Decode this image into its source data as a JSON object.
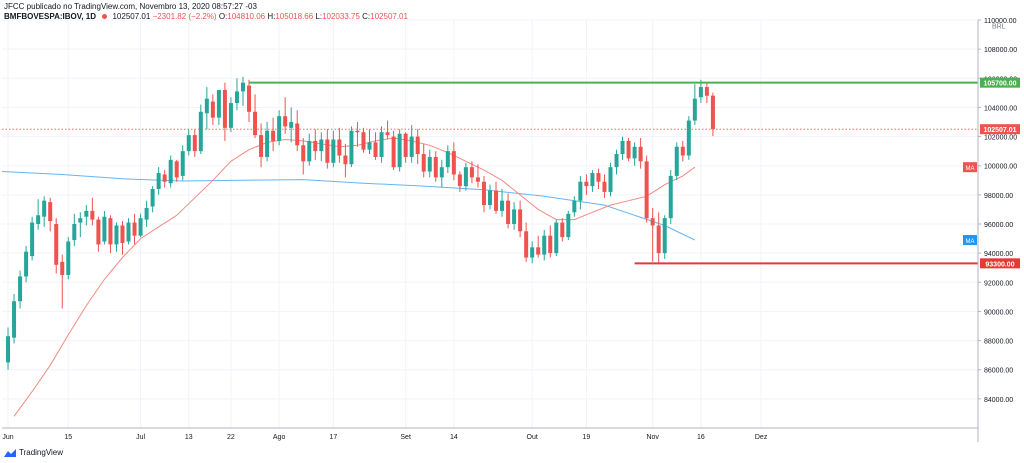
{
  "header": {
    "line1": "JFCC publicado no TradingView.com, Novembro 13, 2020 08:57:27 -03",
    "symbol": "BMFBOVESPA:IBOV, 1D",
    "price": "102507.01",
    "change": "−2301.82 (−2.2%)",
    "o_label": "O:",
    "o_val": "104810.06",
    "h_label": "H:",
    "h_val": "105018.66",
    "l_label": "L:",
    "l_val": "102033.75",
    "c_label": "C:",
    "c_val": "102507.01"
  },
  "footer": {
    "brand": "TradingView"
  },
  "colors": {
    "up": "#26a69a",
    "down": "#ef5350",
    "ma_fast": "#f28b82",
    "ma_slow": "#64b5f6",
    "resistance": "#4caf50",
    "support": "#e53935"
  },
  "chart_data": {
    "type": "candlestick",
    "currency_label": "BRL",
    "y_range": [
      82000,
      110000
    ],
    "y_ticks": [
      "84000.00",
      "86000.00",
      "88000.00",
      "90000.00",
      "92000.00",
      "94000.00",
      "96000.00",
      "98000.00",
      "100000.00",
      "102000.00",
      "104000.00",
      "106000.00",
      "108000.00",
      "110000.00"
    ],
    "x_range": [
      0,
      162
    ],
    "x_ticks": [
      {
        "label": "Jun",
        "x": 1
      },
      {
        "label": "15",
        "x": 11
      },
      {
        "label": "Jul",
        "x": 23
      },
      {
        "label": "13",
        "x": 31
      },
      {
        "label": "22",
        "x": 38
      },
      {
        "label": "Ago",
        "x": 46
      },
      {
        "label": "17",
        "x": 55
      },
      {
        "label": "Set",
        "x": 67
      },
      {
        "label": "14",
        "x": 75
      },
      {
        "label": "Out",
        "x": 88
      },
      {
        "label": "19",
        "x": 97
      },
      {
        "label": "Nov",
        "x": 108
      },
      {
        "label": "16",
        "x": 116
      },
      {
        "label": "Dez",
        "x": 126
      }
    ],
    "candles": [
      [
        86500,
        88900,
        86000,
        88300
      ],
      [
        88200,
        91200,
        87800,
        90700
      ],
      [
        90700,
        92800,
        90200,
        92400
      ],
      [
        92400,
        94500,
        92000,
        94100
      ],
      [
        93800,
        96500,
        93500,
        96100
      ],
      [
        96000,
        97700,
        95600,
        96600
      ],
      [
        96500,
        97900,
        95800,
        97600
      ],
      [
        97500,
        97800,
        95500,
        96200
      ],
      [
        96000,
        96400,
        92600,
        93200
      ],
      [
        93400,
        93900,
        90200,
        92500
      ],
      [
        92500,
        95100,
        92200,
        94800
      ],
      [
        94900,
        96700,
        94500,
        96000
      ],
      [
        96100,
        96800,
        95100,
        96400
      ],
      [
        96500,
        97300,
        95900,
        96900
      ],
      [
        96900,
        97800,
        95900,
        96300
      ],
      [
        96300,
        96500,
        94100,
        94600
      ],
      [
        94800,
        96900,
        94600,
        96500
      ],
      [
        96400,
        96600,
        94000,
        94600
      ],
      [
        94600,
        96100,
        94100,
        95900
      ],
      [
        95900,
        96200,
        93900,
        94700
      ],
      [
        94800,
        96400,
        94600,
        96100
      ],
      [
        96100,
        96700,
        94600,
        95200
      ],
      [
        95200,
        96700,
        95100,
        96400
      ],
      [
        96300,
        97600,
        95800,
        97100
      ],
      [
        97200,
        98600,
        96800,
        98400
      ],
      [
        98400,
        99900,
        98000,
        99500
      ],
      [
        99400,
        99700,
        98500,
        98900
      ],
      [
        98800,
        100700,
        98500,
        100400
      ],
      [
        100300,
        100400,
        98900,
        99200
      ],
      [
        99300,
        101400,
        99000,
        101000
      ],
      [
        101000,
        102500,
        100700,
        102100
      ],
      [
        102100,
        102500,
        100600,
        101000
      ],
      [
        101000,
        104200,
        100800,
        103700
      ],
      [
        103600,
        105400,
        102500,
        104600
      ],
      [
        104400,
        104900,
        102800,
        103300
      ],
      [
        103300,
        105200,
        102800,
        105200
      ],
      [
        105200,
        105700,
        101700,
        102600
      ],
      [
        102600,
        104700,
        102300,
        104300
      ],
      [
        104300,
        106000,
        103800,
        105100
      ],
      [
        105100,
        106100,
        104100,
        105700
      ],
      [
        105500,
        105900,
        103000,
        103700
      ],
      [
        103700,
        104900,
        101900,
        102100
      ],
      [
        102100,
        102900,
        99900,
        100600
      ],
      [
        100600,
        103000,
        100300,
        102400
      ],
      [
        102400,
        103300,
        101000,
        101700
      ],
      [
        101700,
        103800,
        101400,
        103400
      ],
      [
        103400,
        104700,
        102200,
        102700
      ],
      [
        102600,
        104000,
        101600,
        103000
      ],
      [
        102900,
        103800,
        101000,
        101400
      ],
      [
        101400,
        101900,
        99400,
        100300
      ],
      [
        100300,
        102200,
        100000,
        101700
      ],
      [
        101700,
        102500,
        100400,
        101000
      ],
      [
        101000,
        102300,
        100300,
        101800
      ],
      [
        101800,
        102500,
        99800,
        100200
      ],
      [
        100200,
        102400,
        99900,
        101800
      ],
      [
        101800,
        102600,
        100200,
        100700
      ],
      [
        100700,
        101500,
        99200,
        100100
      ],
      [
        100100,
        102700,
        99900,
        102400
      ],
      [
        102400,
        103000,
        101300,
        102300
      ],
      [
        102300,
        102600,
        100900,
        101100
      ],
      [
        101100,
        102500,
        100800,
        101600
      ],
      [
        101600,
        102300,
        100400,
        100600
      ],
      [
        100600,
        102700,
        100200,
        102300
      ],
      [
        102300,
        103100,
        101800,
        102100
      ],
      [
        102000,
        102400,
        99700,
        99900
      ],
      [
        99900,
        102500,
        99600,
        102200
      ],
      [
        102200,
        102300,
        100200,
        100600
      ],
      [
        100600,
        102800,
        100200,
        102000
      ],
      [
        102000,
        102500,
        100100,
        100800
      ],
      [
        100800,
        101500,
        99200,
        99600
      ],
      [
        99600,
        101100,
        99200,
        100600
      ],
      [
        100600,
        101000,
        98900,
        99200
      ],
      [
        99200,
        100400,
        98500,
        99900
      ],
      [
        99900,
        101400,
        99500,
        101000
      ],
      [
        101000,
        101600,
        99000,
        99400
      ],
      [
        99400,
        99600,
        98200,
        98600
      ],
      [
        98600,
        100200,
        98300,
        99900
      ],
      [
        99900,
        100300,
        98800,
        99200
      ],
      [
        99200,
        100100,
        98500,
        98900
      ],
      [
        98900,
        99300,
        96800,
        97300
      ],
      [
        97300,
        98700,
        97000,
        98300
      ],
      [
        98300,
        98900,
        96700,
        96900
      ],
      [
        96900,
        98400,
        96500,
        97600
      ],
      [
        97600,
        98100,
        95700,
        96000
      ],
      [
        96000,
        97500,
        95600,
        97000
      ],
      [
        97000,
        97600,
        95100,
        95500
      ],
      [
        95500,
        96100,
        93400,
        93700
      ],
      [
        93700,
        94800,
        93300,
        94400
      ],
      [
        94400,
        95200,
        93700,
        93900
      ],
      [
        93900,
        95600,
        93500,
        95200
      ],
      [
        95200,
        95900,
        93700,
        94000
      ],
      [
        94000,
        96300,
        93800,
        96100
      ],
      [
        96100,
        96400,
        94800,
        95100
      ],
      [
        95100,
        96900,
        94900,
        96700
      ],
      [
        96800,
        97900,
        96500,
        97600
      ],
      [
        97600,
        99300,
        97000,
        98900
      ],
      [
        98900,
        99400,
        98000,
        98600
      ],
      [
        98600,
        99700,
        98200,
        99500
      ],
      [
        99500,
        99800,
        98400,
        98900
      ],
      [
        98900,
        99400,
        97800,
        98200
      ],
      [
        98200,
        100200,
        97900,
        99900
      ],
      [
        99900,
        101100,
        99400,
        100800
      ],
      [
        100800,
        102000,
        100400,
        101700
      ],
      [
        101700,
        101900,
        100300,
        100500
      ],
      [
        100500,
        101600,
        100000,
        101300
      ],
      [
        101300,
        101900,
        99800,
        100300
      ],
      [
        100300,
        100700,
        96100,
        96400
      ],
      [
        96400,
        97100,
        93400,
        95900
      ],
      [
        95900,
        96800,
        93300,
        94000
      ],
      [
        94000,
        96600,
        93600,
        96400
      ],
      [
        96400,
        99700,
        96000,
        99300
      ],
      [
        99300,
        101600,
        99000,
        101300
      ],
      [
        101300,
        101700,
        100300,
        100700
      ],
      [
        100700,
        103400,
        100400,
        103100
      ],
      [
        103100,
        105600,
        102800,
        104600
      ],
      [
        104700,
        105900,
        104300,
        105400
      ],
      [
        105400,
        105700,
        104300,
        104800
      ],
      [
        104810,
        105018,
        102033,
        102507
      ]
    ],
    "start_x": 1,
    "ma_fast": [
      [
        2,
        82800
      ],
      [
        5,
        84500
      ],
      [
        8,
        86300
      ],
      [
        11,
        88400
      ],
      [
        14,
        90400
      ],
      [
        17,
        92200
      ],
      [
        20,
        93700
      ],
      [
        23,
        95000
      ],
      [
        26,
        95800
      ],
      [
        29,
        96600
      ],
      [
        32,
        97800
      ],
      [
        35,
        99000
      ],
      [
        38,
        100300
      ],
      [
        41,
        101100
      ],
      [
        44,
        101600
      ],
      [
        47,
        101800
      ],
      [
        50,
        101700
      ],
      [
        53,
        101500
      ],
      [
        56,
        101300
      ],
      [
        59,
        101400
      ],
      [
        62,
        101700
      ],
      [
        65,
        101900
      ],
      [
        68,
        101700
      ],
      [
        71,
        101400
      ],
      [
        74,
        100900
      ],
      [
        77,
        100300
      ],
      [
        80,
        99700
      ],
      [
        83,
        99000
      ],
      [
        86,
        98000
      ],
      [
        89,
        97000
      ],
      [
        92,
        96300
      ],
      [
        95,
        96300
      ],
      [
        98,
        96800
      ],
      [
        101,
        97300
      ],
      [
        104,
        97600
      ],
      [
        107,
        97900
      ],
      [
        110,
        98700
      ],
      [
        113,
        99300
      ],
      [
        115,
        99900
      ]
    ],
    "ma_slow": [
      [
        0,
        99600
      ],
      [
        10,
        99400
      ],
      [
        20,
        99100
      ],
      [
        30,
        98950
      ],
      [
        40,
        99000
      ],
      [
        50,
        99050
      ],
      [
        60,
        98800
      ],
      [
        70,
        98600
      ],
      [
        80,
        98350
      ],
      [
        90,
        97900
      ],
      [
        100,
        97300
      ],
      [
        105,
        96600
      ],
      [
        110,
        95900
      ],
      [
        115,
        94900
      ]
    ],
    "resistance": {
      "value": 105700,
      "x_start": 41,
      "label": "105700.00"
    },
    "support": {
      "value": 93300,
      "x_start": 105,
      "label": "93300.00"
    },
    "last_price": {
      "value": 102507.01,
      "label": "102507.01"
    },
    "ma_fast_tag": {
      "value": 99900,
      "label": "MA"
    },
    "ma_slow_tag": {
      "value": 94900,
      "label": "MA"
    }
  }
}
